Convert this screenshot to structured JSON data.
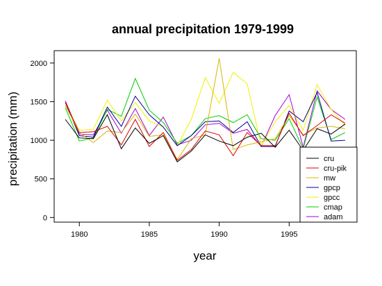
{
  "chart_data": {
    "type": "line",
    "title": "annual precipitation 1979-1999",
    "xlabel": "year",
    "ylabel": "precipitation (mm)",
    "xlim": [
      1978.2,
      1999.8
    ],
    "ylim": [
      -60,
      2160
    ],
    "x_ticks": [
      1980,
      1985,
      1990,
      1995
    ],
    "y_ticks": [
      0,
      500,
      1000,
      1500,
      2000
    ],
    "x": [
      1979,
      1980,
      1981,
      1982,
      1983,
      1984,
      1985,
      1986,
      1987,
      1988,
      1989,
      1990,
      1991,
      1992,
      1993,
      1994,
      1995,
      1996,
      1997,
      1998,
      1999
    ],
    "legend_position": "bottom-right",
    "grid": false,
    "series": [
      {
        "name": "cru",
        "color": "#000000",
        "values": [
          1270,
          1030,
          1020,
          1330,
          890,
          1160,
          960,
          1060,
          720,
          860,
          1070,
          990,
          930,
          1040,
          1090,
          910,
          1130,
          870,
          1150,
          1080,
          1210
        ]
      },
      {
        "name": "cru-pik",
        "color": "#e00000",
        "values": [
          1490,
          1100,
          1110,
          1180,
          940,
          1270,
          920,
          1100,
          740,
          880,
          1120,
          1070,
          800,
          1100,
          930,
          930,
          1350,
          1060,
          1190,
          1330,
          1220
        ]
      },
      {
        "name": "mw",
        "color": "#d8b400",
        "values": [
          1450,
          1100,
          970,
          1120,
          1100,
          1340,
          1050,
          1070,
          750,
          1020,
          1070,
          2060,
          880,
          940,
          980,
          1020,
          1320,
          1070,
          1160,
          1180,
          1150
        ]
      },
      {
        "name": "gpcp",
        "color": "#000090",
        "values": [
          1490,
          1060,
          1040,
          1430,
          1180,
          1570,
          1330,
          1170,
          930,
          1060,
          1240,
          1250,
          1100,
          1240,
          920,
          920,
          1380,
          1240,
          1620,
          990,
          1000
        ]
      },
      {
        "name": "gpcc",
        "color": "#f0f000",
        "values": [
          1460,
          1130,
          1140,
          1520,
          1250,
          1490,
          1250,
          1170,
          930,
          1270,
          1810,
          1480,
          1880,
          1730,
          930,
          1240,
          1450,
          1130,
          1720,
          1400,
          1190
        ]
      },
      {
        "name": "cmap",
        "color": "#00cc00",
        "values": [
          1420,
          990,
          1030,
          1400,
          1310,
          1800,
          1390,
          1230,
          960,
          1060,
          1280,
          1320,
          1230,
          1330,
          1020,
          1000,
          1280,
          890,
          1560,
          1010,
          1100
        ]
      },
      {
        "name": "adam",
        "color": "#a000d8",
        "values": [
          1510,
          1080,
          1070,
          1390,
          1090,
          1410,
          1060,
          1300,
          940,
          1000,
          1200,
          1220,
          1090,
          1140,
          920,
          1320,
          1590,
          910,
          1640,
          1400,
          1270
        ]
      }
    ]
  }
}
